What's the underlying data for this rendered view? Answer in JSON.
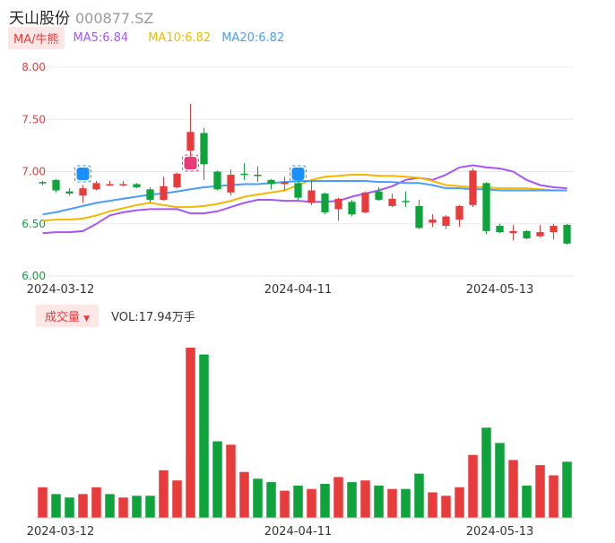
{
  "header": {
    "name": "天山股份",
    "code": "000877.SZ"
  },
  "ma_legend": {
    "tag": "MA/牛熊",
    "items": [
      {
        "label": "MA5:6.84",
        "color": "#a855f7"
      },
      {
        "label": "MA10:6.82",
        "color": "#f5b800"
      },
      {
        "label": "MA20:6.82",
        "color": "#4a9df8"
      }
    ]
  },
  "volume_legend": {
    "tag": "成交量",
    "text": "VOL:17.94万手"
  },
  "colors": {
    "up": "#e83b3b",
    "down": "#0fa33b",
    "grid": "#e8e8e8",
    "axis_up": "#e83b3b",
    "axis_down": "#0fa33b"
  },
  "chart_data": [
    {
      "type": "candlestick",
      "ylim": [
        6.0,
        8.0
      ],
      "y_ticks": [
        "8.00",
        "7.50",
        "7.00",
        "6.50",
        "6.00"
      ],
      "x_tick_labels": [
        {
          "label": "2024-03-12",
          "index": 2
        },
        {
          "label": "2024-04-11",
          "index": 19
        },
        {
          "label": "2024-05-13",
          "index": 34
        }
      ],
      "candles": [
        {
          "o": 6.9,
          "c": 6.89,
          "h": 6.91,
          "l": 6.87
        },
        {
          "o": 6.92,
          "c": 6.82,
          "h": 6.93,
          "l": 6.8
        },
        {
          "o": 6.81,
          "c": 6.79,
          "h": 6.84,
          "l": 6.77
        },
        {
          "o": 6.77,
          "c": 6.84,
          "h": 6.87,
          "l": 6.7
        },
        {
          "o": 6.83,
          "c": 6.89,
          "h": 6.91,
          "l": 6.82
        },
        {
          "o": 6.88,
          "c": 6.88,
          "h": 6.91,
          "l": 6.86
        },
        {
          "o": 6.87,
          "c": 6.88,
          "h": 6.91,
          "l": 6.86
        },
        {
          "o": 6.88,
          "c": 6.85,
          "h": 6.89,
          "l": 6.84
        },
        {
          "o": 6.83,
          "c": 6.73,
          "h": 6.85,
          "l": 6.7
        },
        {
          "o": 6.73,
          "c": 6.86,
          "h": 6.95,
          "l": 6.72
        },
        {
          "o": 6.85,
          "c": 6.98,
          "h": 6.99,
          "l": 6.84
        },
        {
          "o": 7.2,
          "c": 7.38,
          "h": 7.65,
          "l": 7.07
        },
        {
          "o": 7.37,
          "c": 7.07,
          "h": 7.42,
          "l": 6.92
        },
        {
          "o": 7.0,
          "c": 6.83,
          "h": 7.01,
          "l": 6.82
        },
        {
          "o": 6.8,
          "c": 6.97,
          "h": 7.02,
          "l": 6.77
        },
        {
          "o": 6.98,
          "c": 6.97,
          "h": 7.08,
          "l": 6.92
        },
        {
          "o": 6.97,
          "c": 6.96,
          "h": 7.05,
          "l": 6.9
        },
        {
          "o": 6.92,
          "c": 6.88,
          "h": 6.93,
          "l": 6.83
        },
        {
          "o": 6.88,
          "c": 6.9,
          "h": 6.95,
          "l": 6.82
        },
        {
          "o": 6.89,
          "c": 6.75,
          "h": 6.91,
          "l": 6.73
        },
        {
          "o": 6.7,
          "c": 6.82,
          "h": 6.91,
          "l": 6.68
        },
        {
          "o": 6.79,
          "c": 6.61,
          "h": 6.8,
          "l": 6.59
        },
        {
          "o": 6.64,
          "c": 6.74,
          "h": 6.75,
          "l": 6.53
        },
        {
          "o": 6.71,
          "c": 6.59,
          "h": 6.73,
          "l": 6.57
        },
        {
          "o": 6.61,
          "c": 6.8,
          "h": 6.81,
          "l": 6.6
        },
        {
          "o": 6.81,
          "c": 6.73,
          "h": 6.85,
          "l": 6.72
        },
        {
          "o": 6.67,
          "c": 6.74,
          "h": 6.79,
          "l": 6.66
        },
        {
          "o": 6.72,
          "c": 6.71,
          "h": 6.81,
          "l": 6.66
        },
        {
          "o": 6.67,
          "c": 6.46,
          "h": 6.73,
          "l": 6.45
        },
        {
          "o": 6.51,
          "c": 6.54,
          "h": 6.59,
          "l": 6.47
        },
        {
          "o": 6.48,
          "c": 6.57,
          "h": 6.58,
          "l": 6.45
        },
        {
          "o": 6.54,
          "c": 6.67,
          "h": 6.68,
          "l": 6.47
        },
        {
          "o": 6.68,
          "c": 7.01,
          "h": 7.03,
          "l": 6.66
        },
        {
          "o": 6.89,
          "c": 6.43,
          "h": 6.9,
          "l": 6.4
        },
        {
          "o": 6.48,
          "c": 6.42,
          "h": 6.5,
          "l": 6.41
        },
        {
          "o": 6.41,
          "c": 6.43,
          "h": 6.49,
          "l": 6.34
        },
        {
          "o": 6.43,
          "c": 6.36,
          "h": 6.44,
          "l": 6.35
        },
        {
          "o": 6.38,
          "c": 6.42,
          "h": 6.49,
          "l": 6.37
        },
        {
          "o": 6.42,
          "c": 6.48,
          "h": 6.5,
          "l": 6.35
        },
        {
          "o": 6.49,
          "c": 6.31,
          "h": 6.5,
          "l": 6.3
        }
      ],
      "series": [
        {
          "name": "MA5",
          "color": "#a855f7",
          "values": [
            6.41,
            6.42,
            6.42,
            6.43,
            6.5,
            6.58,
            6.61,
            6.63,
            6.64,
            6.64,
            6.64,
            6.6,
            6.6,
            6.62,
            6.66,
            6.7,
            6.73,
            6.73,
            6.72,
            6.72,
            6.71,
            6.71,
            6.72,
            6.76,
            6.79,
            6.82,
            6.86,
            6.92,
            6.94,
            6.92,
            6.97,
            7.04,
            7.06,
            7.04,
            7.03,
            7.0,
            6.92,
            6.87,
            6.85,
            6.84
          ]
        },
        {
          "name": "MA10",
          "color": "#f5b800",
          "values": [
            6.53,
            6.54,
            6.54,
            6.55,
            6.58,
            6.62,
            6.65,
            6.68,
            6.7,
            6.68,
            6.66,
            6.66,
            6.67,
            6.69,
            6.72,
            6.76,
            6.78,
            6.8,
            6.82,
            6.87,
            6.92,
            6.95,
            6.96,
            6.97,
            6.97,
            6.96,
            6.96,
            6.95,
            6.94,
            6.91,
            6.87,
            6.86,
            6.85,
            6.85,
            6.84,
            6.84,
            6.84,
            6.83,
            6.82,
            6.82
          ]
        },
        {
          "name": "MA20",
          "color": "#4a9df8",
          "values": [
            6.59,
            6.61,
            6.64,
            6.67,
            6.7,
            6.72,
            6.74,
            6.76,
            6.78,
            6.79,
            6.81,
            6.83,
            6.85,
            6.86,
            6.87,
            6.88,
            6.88,
            6.89,
            6.9,
            6.91,
            6.91,
            6.91,
            6.91,
            6.91,
            6.91,
            6.9,
            6.9,
            6.89,
            6.89,
            6.87,
            6.84,
            6.84,
            6.83,
            6.83,
            6.82,
            6.82,
            6.82,
            6.82,
            6.82,
            6.82
          ]
        }
      ],
      "markers": [
        {
          "index": 3,
          "color": "#1a90ff"
        },
        {
          "index": 11,
          "color": "#e83b7a"
        },
        {
          "index": 19,
          "color": "#1a90ff"
        }
      ]
    },
    {
      "type": "bar",
      "title": "成交量",
      "ylim": [
        0,
        100
      ],
      "x_tick_labels": [
        {
          "label": "2024-03-12",
          "index": 2
        },
        {
          "label": "2024-04-11",
          "index": 19
        },
        {
          "label": "2024-05-13",
          "index": 34
        }
      ],
      "values": [
        18,
        14,
        12,
        14,
        18,
        14,
        12,
        13,
        13,
        28,
        22,
        100,
        96,
        45,
        43,
        27,
        23,
        21,
        16,
        19,
        17,
        20,
        24,
        21,
        22,
        19,
        17,
        17,
        26,
        15,
        13,
        18,
        37,
        53,
        44,
        34,
        19,
        31,
        25,
        33
      ],
      "direction": [
        "up",
        "down",
        "down",
        "up",
        "up",
        "down",
        "up",
        "down",
        "down",
        "up",
        "up",
        "up",
        "down",
        "down",
        "up",
        "up",
        "down",
        "down",
        "up",
        "down",
        "up",
        "down",
        "up",
        "down",
        "up",
        "down",
        "up",
        "down",
        "down",
        "up",
        "up",
        "up",
        "up",
        "down",
        "down",
        "up",
        "down",
        "up",
        "up",
        "down"
      ]
    }
  ]
}
